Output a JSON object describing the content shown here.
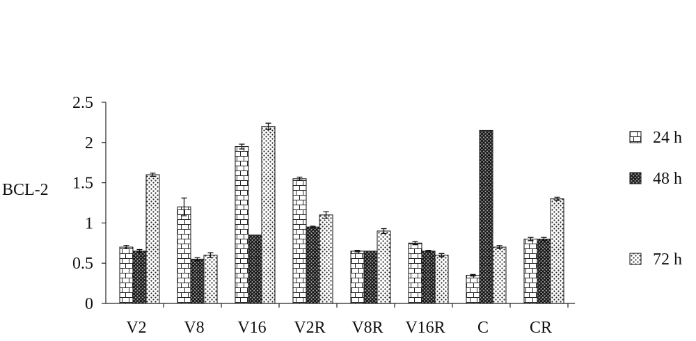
{
  "chart_data": {
    "type": "bar",
    "ylabel": "BCL-2",
    "categories": [
      "V2",
      "V8",
      "V16",
      "V2R",
      "V8R",
      "V16R",
      "C",
      "CR"
    ],
    "series": [
      {
        "name": "24 h",
        "pattern": "brick",
        "values": [
          0.7,
          1.2,
          1.95,
          1.55,
          0.65,
          0.75,
          0.35,
          0.8
        ],
        "errors": [
          0.02,
          0.11,
          0.03,
          0.02,
          0.01,
          0.02,
          0.01,
          0.02
        ]
      },
      {
        "name": "48 h",
        "pattern": "crosshatch",
        "values": [
          0.65,
          0.55,
          0.85,
          0.95,
          0.65,
          0.65,
          2.15,
          0.8
        ],
        "errors": [
          0.02,
          0.02,
          0,
          0.01,
          0,
          0.01,
          0,
          0.02
        ]
      },
      {
        "name": "72 h",
        "pattern": "dots",
        "values": [
          1.6,
          0.6,
          2.2,
          1.1,
          0.9,
          0.6,
          0.7,
          1.3
        ],
        "errors": [
          0.02,
          0.03,
          0.04,
          0.04,
          0.03,
          0.02,
          0.02,
          0.02
        ]
      }
    ],
    "ylim": [
      0,
      2.5
    ],
    "ytick_labels": [
      "0",
      "0.5",
      "1",
      "1.5",
      "2",
      "2.5"
    ],
    "grid": false,
    "legend_position": "right"
  }
}
